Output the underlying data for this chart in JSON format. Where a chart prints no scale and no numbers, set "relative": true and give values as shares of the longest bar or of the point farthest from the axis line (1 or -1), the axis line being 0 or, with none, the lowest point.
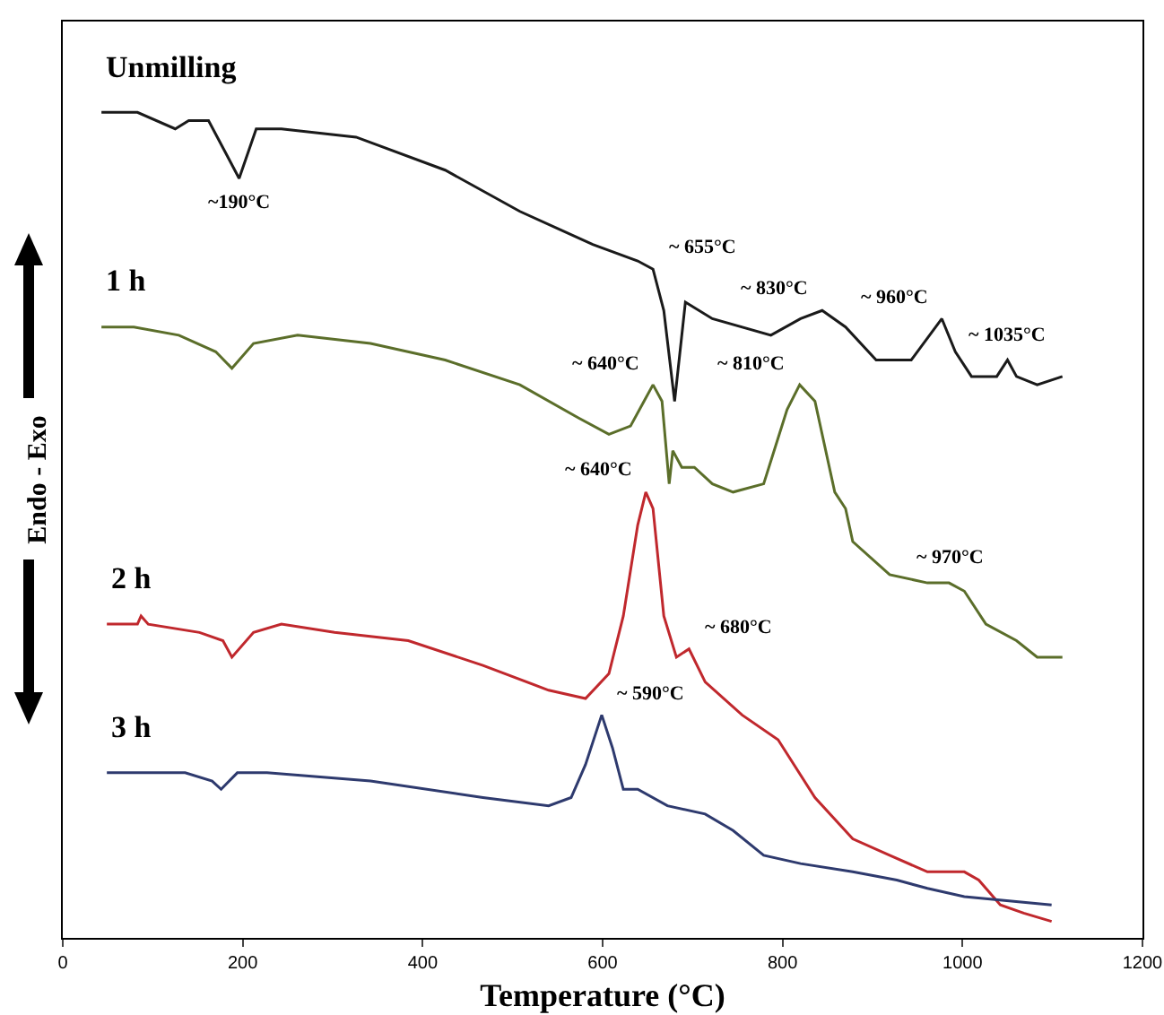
{
  "chart_data": {
    "type": "line",
    "relative": true,
    "xlabel": "Temperature (°C)",
    "ylabel": "Endo - Exo",
    "xlim": [
      0,
      1200
    ],
    "xticks": [
      0,
      200,
      400,
      600,
      800,
      1000,
      1200
    ],
    "line_style": "solid",
    "series": [
      {
        "name": "Unmilling",
        "color": "#1a1a1a",
        "x": [
          43,
          83,
          125,
          140,
          162,
          196,
          215,
          243,
          326,
          425,
          508,
          589,
          639,
          656,
          668,
          680,
          692,
          722,
          787,
          820,
          844,
          870,
          904,
          943,
          977,
          992,
          1010,
          1038,
          1050,
          1060,
          1083,
          1111
        ],
        "values": [
          1.0,
          1.0,
          0.98,
          0.99,
          0.99,
          0.92,
          0.98,
          0.98,
          0.97,
          0.93,
          0.88,
          0.84,
          0.82,
          0.81,
          0.76,
          0.65,
          0.77,
          0.75,
          0.73,
          0.75,
          0.76,
          0.74,
          0.7,
          0.7,
          0.75,
          0.71,
          0.68,
          0.68,
          0.7,
          0.68,
          0.67,
          0.68
        ]
      },
      {
        "name": "1 h",
        "color": "#5b6e2a",
        "x": [
          43,
          79,
          129,
          170,
          188,
          212,
          261,
          342,
          425,
          508,
          573,
          607,
          631,
          646,
          656,
          666,
          674,
          678,
          688,
          702,
          722,
          745,
          779,
          805,
          819,
          836,
          858,
          870,
          878,
          919,
          961,
          985,
          1002,
          1026,
          1060,
          1083,
          1111
        ],
        "values": [
          0.74,
          0.74,
          0.73,
          0.71,
          0.69,
          0.72,
          0.73,
          0.72,
          0.7,
          0.67,
          0.63,
          0.61,
          0.62,
          0.65,
          0.67,
          0.65,
          0.55,
          0.59,
          0.57,
          0.57,
          0.55,
          0.54,
          0.55,
          0.64,
          0.67,
          0.65,
          0.54,
          0.52,
          0.48,
          0.44,
          0.43,
          0.43,
          0.42,
          0.38,
          0.36,
          0.34,
          0.34
        ]
      },
      {
        "name": "2 h",
        "color": "#c0282d",
        "x": [
          49,
          83,
          87,
          95,
          152,
          178,
          188,
          212,
          243,
          302,
          384,
          467,
          540,
          581,
          607,
          623,
          639,
          648,
          656,
          668,
          682,
          696,
          714,
          755,
          795,
          836,
          878,
          919,
          961,
          1002,
          1018,
          1042,
          1068,
          1099
        ],
        "values": [
          0.38,
          0.38,
          0.39,
          0.38,
          0.37,
          0.36,
          0.34,
          0.37,
          0.38,
          0.37,
          0.36,
          0.33,
          0.3,
          0.29,
          0.32,
          0.39,
          0.5,
          0.54,
          0.52,
          0.39,
          0.34,
          0.35,
          0.31,
          0.27,
          0.24,
          0.17,
          0.12,
          0.1,
          0.08,
          0.08,
          0.07,
          0.04,
          0.03,
          0.02
        ]
      },
      {
        "name": "3 h",
        "color": "#2e3a6e",
        "x": [
          49,
          79,
          83,
          136,
          166,
          176,
          194,
          227,
          342,
          467,
          540,
          565,
          581,
          599,
          611,
          623,
          639,
          672,
          714,
          745,
          779,
          820,
          878,
          927,
          961,
          1002,
          1099
        ],
        "values": [
          0.2,
          0.2,
          0.2,
          0.2,
          0.19,
          0.18,
          0.2,
          0.2,
          0.19,
          0.17,
          0.16,
          0.17,
          0.21,
          0.27,
          0.23,
          0.18,
          0.18,
          0.16,
          0.15,
          0.13,
          0.1,
          0.09,
          0.08,
          0.07,
          0.06,
          0.05,
          0.04
        ]
      }
    ],
    "annotations": [
      {
        "text": "~190°C",
        "x": 196,
        "y": 0.92
      },
      {
        "text": "~ 655°C",
        "x": 656,
        "y": 0.81
      },
      {
        "text": "~ 830°C",
        "x": 844,
        "y": 0.76
      },
      {
        "text": "~ 960°C",
        "x": 977,
        "y": 0.75
      },
      {
        "text": "~ 1035°C",
        "x": 1050,
        "y": 0.7
      },
      {
        "text": "~ 640°C",
        "x": 656,
        "y": 0.67
      },
      {
        "text": "~ 810°C",
        "x": 819,
        "y": 0.67
      },
      {
        "text": "~ 970°C",
        "x": 985,
        "y": 0.43
      },
      {
        "text": "~ 640°C",
        "x": 648,
        "y": 0.54
      },
      {
        "text": "~ 680°C",
        "x": 696,
        "y": 0.35
      },
      {
        "text": "~ 590°C",
        "x": 599,
        "y": 0.27
      }
    ]
  }
}
